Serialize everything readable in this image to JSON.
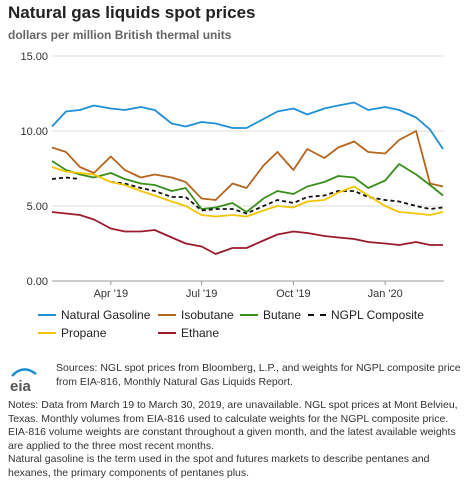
{
  "chart_data": {
    "type": "line",
    "title": "Natural gas liquids spot prices",
    "subtitle": "dollars per million British thermal units",
    "ylim": [
      0,
      15
    ],
    "yticks": [
      "0.00",
      "5.00",
      "10.00",
      "15.00"
    ],
    "xticks": [
      "Apr '19",
      "Jul '19",
      "Oct '19",
      "Jan '20"
    ],
    "x_range": [
      "2019-02-01",
      "2020-02-29"
    ],
    "grid": "horizontal",
    "legend_position": "bottom",
    "series": [
      {
        "name": "Natural Gasoline",
        "color": "#1f8fd6",
        "dashed": false,
        "dates": [
          "2019-02-01",
          "2019-02-15",
          "2019-03-01",
          "2019-03-15",
          "2019-04-01",
          "2019-04-15",
          "2019-05-01",
          "2019-05-15",
          "2019-06-01",
          "2019-06-15",
          "2019-07-01",
          "2019-07-15",
          "2019-08-01",
          "2019-08-15",
          "2019-09-01",
          "2019-09-15",
          "2019-10-01",
          "2019-10-15",
          "2019-11-01",
          "2019-11-15",
          "2019-12-01",
          "2019-12-15",
          "2020-01-01",
          "2020-01-15",
          "2020-02-01",
          "2020-02-15",
          "2020-02-28"
        ],
        "values": [
          10.3,
          11.3,
          11.4,
          11.7,
          11.5,
          11.4,
          11.6,
          11.4,
          10.5,
          10.3,
          10.6,
          10.5,
          10.2,
          10.2,
          10.8,
          11.3,
          11.5,
          11.1,
          11.5,
          11.7,
          11.9,
          11.4,
          11.6,
          11.4,
          10.9,
          10.1,
          8.8
        ]
      },
      {
        "name": "Isobutane",
        "color": "#b5651d",
        "dashed": false,
        "dates": [
          "2019-02-01",
          "2019-02-15",
          "2019-03-01",
          "2019-03-15",
          "2019-04-01",
          "2019-04-15",
          "2019-05-01",
          "2019-05-15",
          "2019-06-01",
          "2019-06-15",
          "2019-07-01",
          "2019-07-15",
          "2019-08-01",
          "2019-08-15",
          "2019-09-01",
          "2019-09-15",
          "2019-10-01",
          "2019-10-15",
          "2019-11-01",
          "2019-11-15",
          "2019-12-01",
          "2019-12-15",
          "2020-01-01",
          "2020-01-15",
          "2020-02-01",
          "2020-02-15",
          "2020-02-28"
        ],
        "values": [
          8.9,
          8.6,
          7.6,
          7.2,
          8.3,
          7.4,
          6.9,
          7.1,
          6.9,
          6.6,
          5.5,
          5.4,
          6.5,
          6.2,
          7.7,
          8.6,
          7.4,
          8.8,
          8.2,
          8.9,
          9.3,
          8.6,
          8.5,
          9.4,
          10.0,
          6.5,
          6.3
        ]
      },
      {
        "name": "Butane",
        "color": "#3a8f1c",
        "dashed": false,
        "dates": [
          "2019-02-01",
          "2019-02-15",
          "2019-03-01",
          "2019-03-15",
          "2019-04-01",
          "2019-04-15",
          "2019-05-01",
          "2019-05-15",
          "2019-06-01",
          "2019-06-15",
          "2019-07-01",
          "2019-07-15",
          "2019-08-01",
          "2019-08-15",
          "2019-09-01",
          "2019-09-15",
          "2019-10-01",
          "2019-10-15",
          "2019-11-01",
          "2019-11-15",
          "2019-12-01",
          "2019-12-15",
          "2020-01-01",
          "2020-01-15",
          "2020-02-01",
          "2020-02-15",
          "2020-02-28"
        ],
        "values": [
          8.0,
          7.4,
          7.1,
          6.9,
          7.2,
          6.8,
          6.5,
          6.4,
          6.0,
          6.2,
          4.8,
          4.9,
          5.2,
          4.6,
          5.5,
          6.0,
          5.8,
          6.3,
          6.6,
          7.0,
          6.9,
          6.2,
          6.7,
          7.8,
          7.1,
          6.4,
          5.7
        ]
      },
      {
        "name": "NGPL Composite",
        "color": "#111111",
        "dashed": true,
        "dates": [
          "2019-02-01",
          "2019-02-15",
          "2019-03-01",
          "2019-03-15",
          "2019-04-01",
          "2019-04-15",
          "2019-05-01",
          "2019-05-15",
          "2019-06-01",
          "2019-06-15",
          "2019-07-01",
          "2019-07-15",
          "2019-08-01",
          "2019-08-15",
          "2019-09-01",
          "2019-09-15",
          "2019-10-01",
          "2019-10-15",
          "2019-11-01",
          "2019-11-15",
          "2019-12-01",
          "2019-12-15",
          "2020-01-01",
          "2020-01-15",
          "2020-02-01",
          "2020-02-15",
          "2020-02-28"
        ],
        "values": [
          6.8,
          6.9,
          6.8,
          null,
          6.6,
          6.5,
          6.2,
          6.0,
          5.6,
          5.6,
          4.7,
          4.8,
          4.8,
          4.5,
          5.0,
          5.4,
          5.2,
          5.6,
          5.7,
          6.0,
          6.0,
          5.6,
          5.4,
          5.3,
          5.0,
          4.8,
          4.9
        ]
      },
      {
        "name": "Propane",
        "color": "#f2c500",
        "dashed": false,
        "dates": [
          "2019-02-01",
          "2019-02-15",
          "2019-03-01",
          "2019-03-15",
          "2019-04-01",
          "2019-04-15",
          "2019-05-01",
          "2019-05-15",
          "2019-06-01",
          "2019-06-15",
          "2019-07-01",
          "2019-07-15",
          "2019-08-01",
          "2019-08-15",
          "2019-09-01",
          "2019-09-15",
          "2019-10-01",
          "2019-10-15",
          "2019-11-01",
          "2019-11-15",
          "2019-12-01",
          "2019-12-15",
          "2020-01-01",
          "2020-01-15",
          "2020-02-01",
          "2020-02-15",
          "2020-02-28"
        ],
        "values": [
          7.6,
          7.3,
          7.2,
          7.1,
          6.6,
          6.4,
          6.0,
          5.7,
          5.3,
          5.0,
          4.4,
          4.3,
          4.4,
          4.3,
          4.7,
          5.0,
          4.9,
          5.3,
          5.4,
          5.9,
          6.3,
          5.7,
          5.0,
          4.6,
          4.5,
          4.4,
          4.6
        ]
      },
      {
        "name": "Ethane",
        "color": "#9b1b2e",
        "dashed": false,
        "dates": [
          "2019-02-01",
          "2019-02-15",
          "2019-03-01",
          "2019-03-15",
          "2019-04-01",
          "2019-04-15",
          "2019-05-01",
          "2019-05-15",
          "2019-06-01",
          "2019-06-15",
          "2019-07-01",
          "2019-07-15",
          "2019-08-01",
          "2019-08-15",
          "2019-09-01",
          "2019-09-15",
          "2019-10-01",
          "2019-10-15",
          "2019-11-01",
          "2019-11-15",
          "2019-12-01",
          "2019-12-15",
          "2020-01-01",
          "2020-01-15",
          "2020-02-01",
          "2020-02-15",
          "2020-02-28"
        ],
        "values": [
          4.6,
          4.5,
          4.4,
          4.1,
          3.5,
          3.3,
          3.3,
          3.4,
          2.9,
          2.5,
          2.3,
          1.8,
          2.2,
          2.2,
          2.7,
          3.1,
          3.3,
          3.2,
          3.0,
          2.9,
          2.8,
          2.6,
          2.5,
          2.4,
          2.6,
          2.4,
          2.4
        ]
      }
    ]
  },
  "source": {
    "logo_text": "eia",
    "text": "Sources: NGL spot prices from Bloomberg, L.P., and weights for NGPL composite price from EIA-816, Monthly Natural Gas Liquids Report."
  },
  "notes": {
    "p1": "Notes: Data from March 19 to March 30, 2019, are unavailable. NGL spot prices at Mont Belvieu, Texas. Monthly volumes from EIA-816 used to calculate weights for the NGPL composite price. EIA-816 volume weights are constant throughout a given month, and the latest available weights are applied to the three most recent months.",
    "p2": "Natural gasoline is the term used in the spot and futures markets to describe pentanes and hexanes, the primary components of pentanes plus."
  }
}
